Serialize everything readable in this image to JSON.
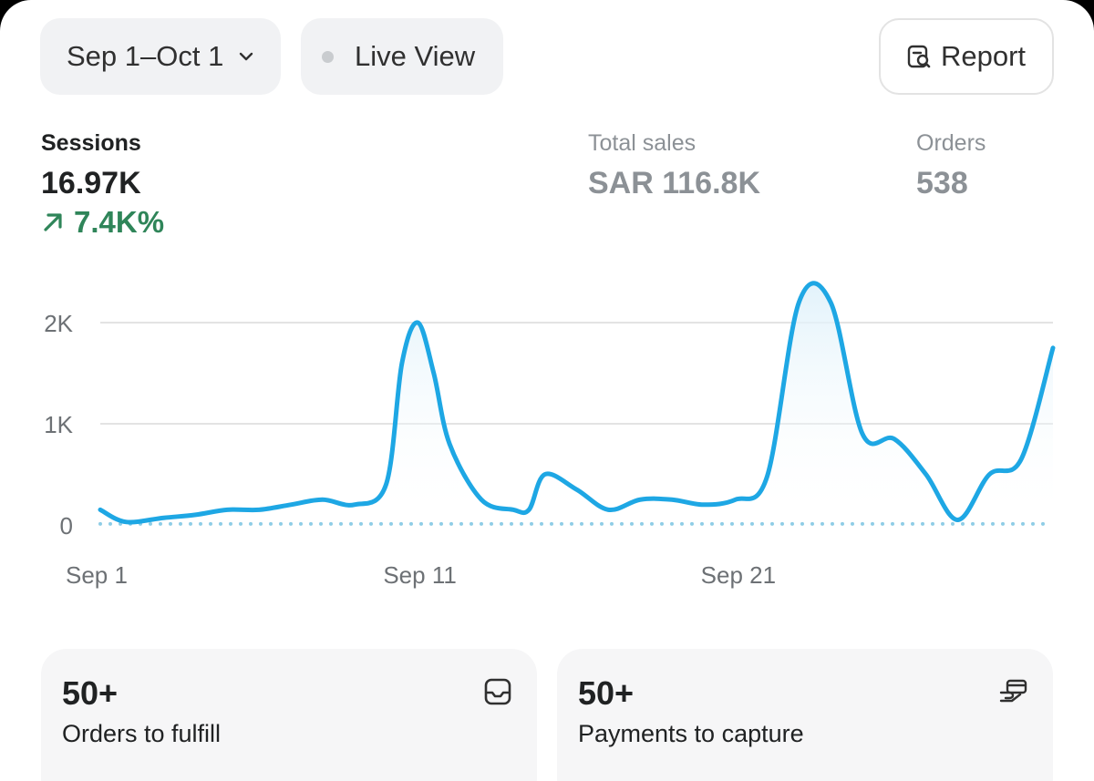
{
  "toolbar": {
    "date_range": "Sep 1–Oct 1",
    "live_view": "Live View",
    "report": "Report"
  },
  "metrics": {
    "sessions": {
      "label": "Sessions",
      "value": "16.97K",
      "delta": "7.4K%"
    },
    "total_sales": {
      "label": "Total sales",
      "value": "SAR 116.8K"
    },
    "orders": {
      "label": "Orders",
      "value": "538"
    }
  },
  "chart_data": {
    "type": "line",
    "y_ticks": [
      "0",
      "1K",
      "2K"
    ],
    "ylim": [
      0,
      2000
    ],
    "x_labels": [
      "Sep 1",
      "Sep 11",
      "Sep 21"
    ],
    "x_label_days": [
      0,
      10,
      20
    ],
    "x_range": [
      0,
      30
    ],
    "grid": true,
    "series": [
      {
        "color": "#1ea7e4",
        "values": [
          [
            0,
            150
          ],
          [
            0.8,
            30
          ],
          [
            2,
            70
          ],
          [
            3,
            100
          ],
          [
            4,
            150
          ],
          [
            5,
            150
          ],
          [
            6,
            200
          ],
          [
            7,
            250
          ],
          [
            8,
            200
          ],
          [
            9,
            400
          ],
          [
            9.5,
            1600
          ],
          [
            10,
            2000
          ],
          [
            10.5,
            1500
          ],
          [
            11,
            800
          ],
          [
            12,
            250
          ],
          [
            13,
            150
          ],
          [
            13.5,
            150
          ],
          [
            14,
            500
          ],
          [
            15,
            350
          ],
          [
            16,
            150
          ],
          [
            17,
            250
          ],
          [
            18,
            250
          ],
          [
            19,
            200
          ],
          [
            20,
            250
          ],
          [
            21,
            480
          ],
          [
            22,
            2200
          ],
          [
            23,
            2200
          ],
          [
            24,
            900
          ],
          [
            25,
            850
          ],
          [
            26,
            500
          ],
          [
            27,
            50
          ],
          [
            28,
            500
          ],
          [
            29,
            650
          ],
          [
            30,
            1750
          ]
        ]
      },
      {
        "style": "dotted",
        "color": "#8fcde6",
        "values": [
          [
            0,
            10
          ],
          [
            30,
            10
          ]
        ]
      }
    ]
  },
  "cards": {
    "fulfill": {
      "value": "50+",
      "label": "Orders to fulfill",
      "icon": "inbox-icon"
    },
    "capture": {
      "value": "50+",
      "label": "Payments to capture",
      "icon": "hand-card-icon"
    }
  }
}
